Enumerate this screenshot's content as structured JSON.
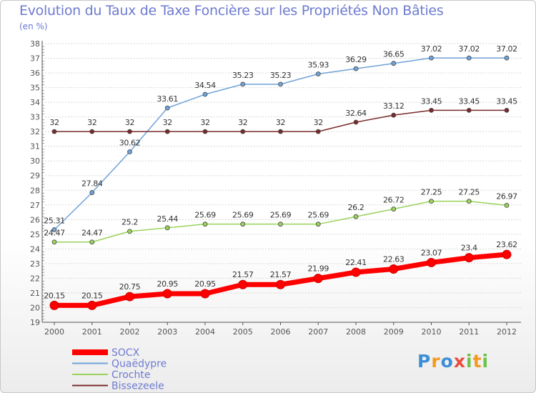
{
  "header": {
    "title": "Evolution du Taux de Taxe Foncière sur les Propriétés Non Bâties",
    "unit": "(en %)"
  },
  "logo": {
    "text": "Proxiti"
  },
  "colors": {
    "title": "#6e7bd0",
    "grid": "#d8d8d8",
    "axis": "#555555",
    "legend_text": "#6e7bd0"
  },
  "chart_data": {
    "type": "line",
    "x": [
      "2000",
      "2001",
      "2002",
      "2003",
      "2004",
      "2005",
      "2006",
      "2007",
      "2008",
      "2009",
      "2010",
      "2011",
      "2012"
    ],
    "ylim": [
      19,
      38
    ],
    "yticks": [
      19,
      20,
      21,
      22,
      23,
      24,
      25,
      26,
      27,
      28,
      29,
      30,
      31,
      32,
      33,
      34,
      35,
      36,
      37,
      38
    ],
    "grid": "horizontal",
    "legend": "bottom-left",
    "series": [
      {
        "name": "SOCX",
        "color": "#ff0000",
        "values": [
          20.15,
          20.15,
          20.75,
          20.95,
          20.95,
          21.57,
          21.57,
          21.99,
          22.41,
          22.63,
          23.07,
          23.4,
          23.62
        ],
        "labels": [
          "20.15",
          "20.15",
          "20.75",
          "20.95",
          "20.95",
          "21.57",
          "21.57",
          "21.99",
          "22.41",
          "22.63",
          "23.07",
          "23.4",
          "23.62"
        ]
      },
      {
        "name": "Quaëdypre",
        "color": "#6fa3d8",
        "values": [
          25.31,
          27.84,
          30.62,
          33.61,
          34.54,
          35.23,
          35.23,
          35.93,
          36.29,
          36.65,
          37.02,
          37.02,
          37.02
        ],
        "labels": [
          "25.31",
          "27.84",
          "30.62",
          "33.61",
          "34.54",
          "35.23",
          "35.23",
          "35.93",
          "36.29",
          "36.65",
          "37.02",
          "37.02",
          "37.02"
        ]
      },
      {
        "name": "Crochte",
        "color": "#9ad25a",
        "values": [
          24.47,
          24.47,
          25.2,
          25.44,
          25.69,
          25.69,
          25.69,
          25.69,
          26.2,
          26.72,
          27.25,
          27.25,
          26.97
        ],
        "labels": [
          "24.47",
          "24.47",
          "25.2",
          "25.44",
          "25.69",
          "25.69",
          "25.69",
          "25.69",
          "26.2",
          "26.72",
          "27.25",
          "27.25",
          "26.97"
        ]
      },
      {
        "name": "Bissezeele",
        "color": "#7a2a2a",
        "values": [
          32,
          32,
          32,
          32,
          32,
          32,
          32,
          32,
          32.64,
          33.12,
          33.45,
          33.45,
          33.45
        ],
        "labels": [
          "32",
          "32",
          "32",
          "32",
          "32",
          "32",
          "32",
          "32",
          "32.64",
          "33.12",
          "33.45",
          "33.45",
          "33.45"
        ]
      }
    ]
  }
}
